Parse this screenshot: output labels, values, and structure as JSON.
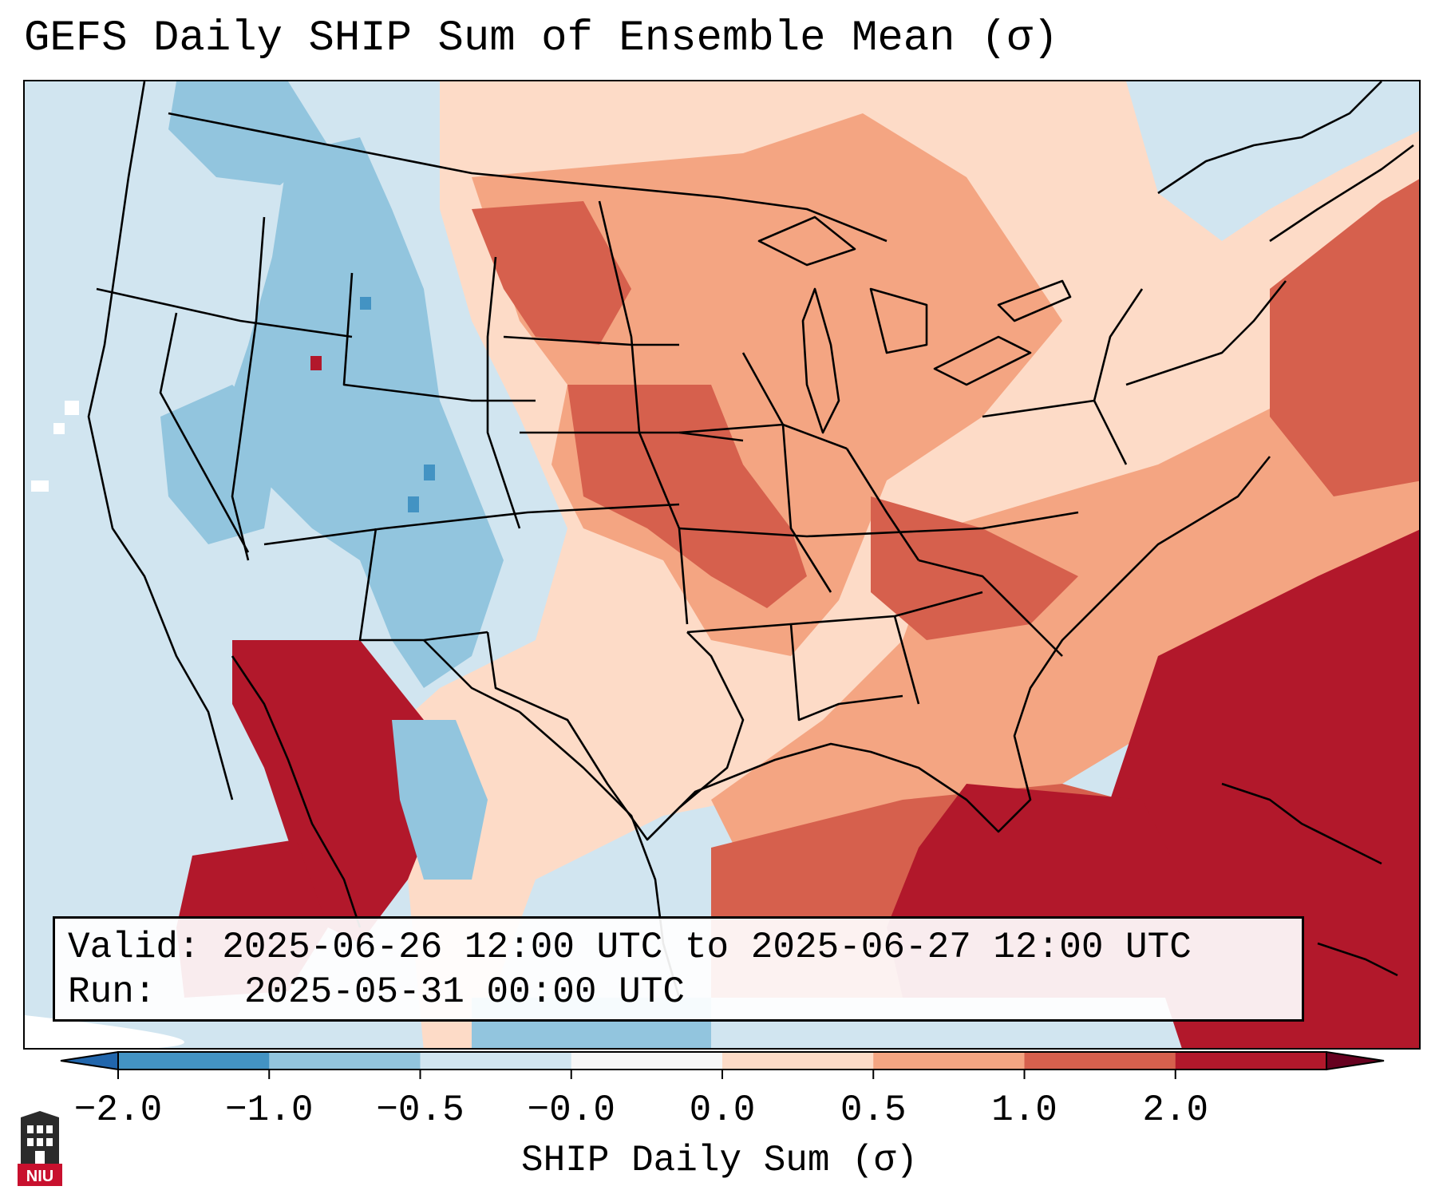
{
  "title": "GEFS Daily SHIP Sum of Ensemble Mean (σ)",
  "info": {
    "valid_label": "Valid:",
    "valid_value": "2025-06-26 12:00 UTC to 2025-06-27 12:00 UTC",
    "run_label": "Run:",
    "run_value": "2025-05-31 00:00 UTC"
  },
  "colorbar": {
    "label": "SHIP Daily Sum (σ)",
    "ticks": [
      "−2.0",
      "−1.0",
      "−0.5",
      "−0.0",
      "0.0",
      "0.5",
      "1.0",
      "2.0"
    ],
    "colors": [
      "#4393c3",
      "#92c5de",
      "#d1e5f0",
      "#f7f7f7",
      "#fddbc7",
      "#f4a582",
      "#d6604d",
      "#b2182b"
    ],
    "under_color": "#2166ac",
    "over_color": "#67001f"
  },
  "logo": {
    "text": "NIU",
    "color": "#c8102e"
  }
}
